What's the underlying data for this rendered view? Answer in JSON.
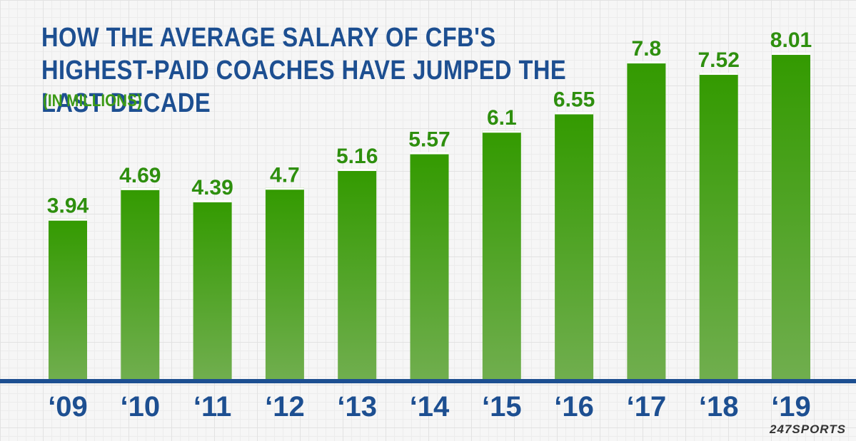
{
  "colors": {
    "title": "#1d4f91",
    "subtitle": "#3c9a16",
    "bar_top": "#339a00",
    "bar_bottom": "#70ae4e",
    "baseline": "#1d4f91",
    "tick_label": "#1d4f91",
    "value_label": "#2e8f0e"
  },
  "brand": "247SPORTS",
  "chart_data": {
    "type": "bar",
    "title": "HOW THE AVERAGE SALARY OF CFB'S HIGHEST-PAID COACHES HAVE JUMPED THE LAST DECADE",
    "subtitle": "(IN MILLIONS)",
    "xlabel": "",
    "ylabel": "",
    "categories": [
      "‘09",
      "‘10",
      "‘11",
      "‘12",
      "‘13",
      "‘14",
      "‘15",
      "‘16",
      "‘17",
      "‘18",
      "‘19"
    ],
    "values": [
      3.94,
      4.69,
      4.39,
      4.7,
      5.16,
      5.57,
      6.1,
      6.55,
      7.8,
      7.52,
      8.01
    ],
    "value_labels": [
      "3.94",
      "4.69",
      "4.39",
      "4.7",
      "5.16",
      "5.57",
      "6.1",
      "6.55",
      "7.8",
      "7.52",
      "8.01"
    ],
    "ylim": [
      0,
      8.78
    ],
    "grid": false,
    "legend": "none"
  }
}
